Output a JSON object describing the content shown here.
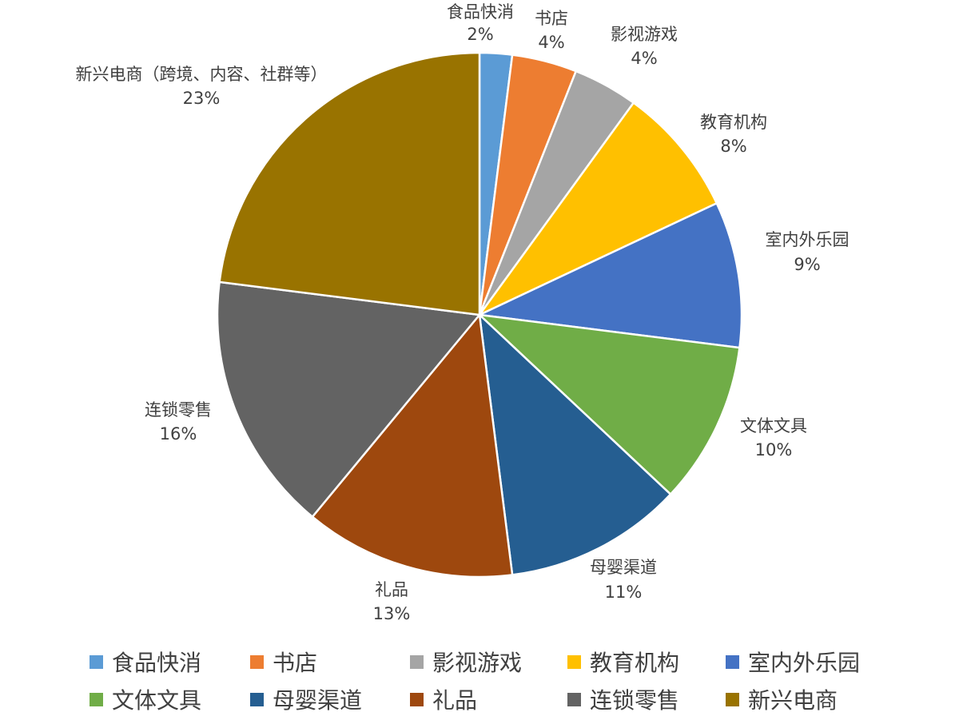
{
  "chart_data": {
    "type": "pie",
    "title": "",
    "slices": [
      {
        "label": "食品快消",
        "data_label": "食品快消",
        "value": 2,
        "value_label": "2%",
        "color": "#5B9BD5"
      },
      {
        "label": "书店",
        "data_label": "书店",
        "value": 4,
        "value_label": "4%",
        "color": "#ED7D31"
      },
      {
        "label": "影视游戏",
        "data_label": "影视游戏",
        "value": 4,
        "value_label": "4%",
        "color": "#A5A5A5"
      },
      {
        "label": "教育机构",
        "data_label": "教育机构",
        "value": 8,
        "value_label": "8%",
        "color": "#FFC000"
      },
      {
        "label": "室内外乐园",
        "data_label": "室内外乐园",
        "value": 9,
        "value_label": "9%",
        "color": "#4472C4"
      },
      {
        "label": "文体文具",
        "data_label": "文体文具",
        "value": 10,
        "value_label": "10%",
        "color": "#70AD47"
      },
      {
        "label": "母婴渠道",
        "data_label": "母婴渠道",
        "value": 11,
        "value_label": "11%",
        "color": "#255E91"
      },
      {
        "label": "礼品",
        "data_label": "礼品",
        "value": 13,
        "value_label": "13%",
        "color": "#9E480E"
      },
      {
        "label": "连锁零售",
        "data_label": "连锁零售",
        "value": 16,
        "value_label": "16%",
        "color": "#636363"
      },
      {
        "label": "新兴电商",
        "data_label": "新兴电商（跨境、内容、社群等）",
        "value": 23,
        "value_label": "23%",
        "color": "#997300"
      }
    ],
    "legend_position": "bottom"
  }
}
